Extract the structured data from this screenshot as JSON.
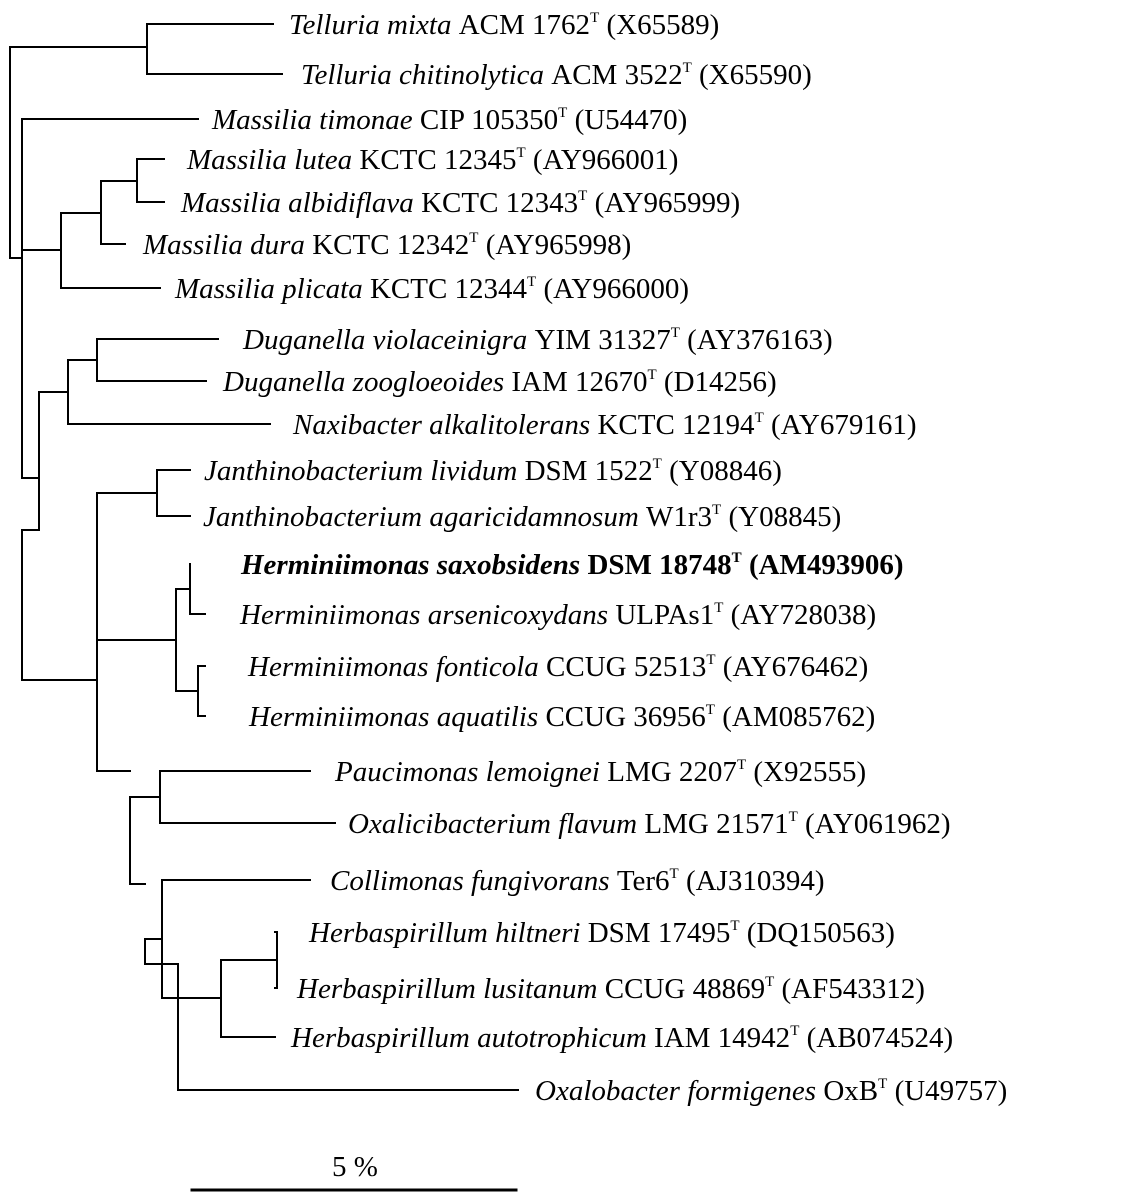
{
  "taxa": [
    {
      "genus_species": "Telluria mixta",
      "strain": "ACM 1762",
      "type_mark": "T",
      "accession": "(X65589)",
      "bold": false
    },
    {
      "genus_species": "Telluria chitinolytica",
      "strain": "ACM 3522",
      "type_mark": "T",
      "accession": "(X65590)",
      "bold": false
    },
    {
      "genus_species": "Massilia timonae",
      "strain": "CIP 105350",
      "type_mark": "T",
      "accession": "(U54470)",
      "bold": false
    },
    {
      "genus_species": "Massilia lutea",
      "strain": "KCTC 12345",
      "type_mark": "T",
      "accession": "(AY966001)",
      "bold": false
    },
    {
      "genus_species": "Massilia albidiflava",
      "strain": "KCTC 12343",
      "type_mark": "T",
      "accession": "(AY965999)",
      "bold": false
    },
    {
      "genus_species": "Massilia dura",
      "strain": "KCTC 12342",
      "type_mark": "T",
      "accession": "(AY965998)",
      "bold": false
    },
    {
      "genus_species": "Massilia plicata",
      "strain": "KCTC 12344",
      "type_mark": "T",
      "accession": "(AY966000)",
      "bold": false
    },
    {
      "genus_species": "Duganella violaceinigra",
      "strain": "YIM 31327",
      "type_mark": "T",
      "accession": "(AY376163)",
      "bold": false
    },
    {
      "genus_species": "Duganella zoogloeoides",
      "strain": "IAM 12670",
      "type_mark": "T",
      "accession": "(D14256)",
      "bold": false
    },
    {
      "genus_species": "Naxibacter alkalitolerans",
      "strain": "KCTC 12194",
      "type_mark": "T",
      "accession": "(AY679161)",
      "bold": false
    },
    {
      "genus_species": "Janthinobacterium lividum",
      "strain": "DSM 1522",
      "type_mark": "T",
      "accession": "(Y08846)",
      "bold": false
    },
    {
      "genus_species": "Janthinobacterium agaricidamnosum",
      "strain": "W1r3",
      "type_mark": "T",
      "accession": "(Y08845)",
      "bold": false
    },
    {
      "genus_species": "Herminiimonas saxobsidens",
      "strain": "DSM 18748",
      "type_mark": "T",
      "accession": "(AM493906)",
      "bold": true
    },
    {
      "genus_species": "Herminiimonas arsenicoxydans",
      "strain": "ULPAs1",
      "type_mark": "T",
      "accession": "(AY728038)",
      "bold": false
    },
    {
      "genus_species": "Herminiimonas fonticola",
      "strain": "CCUG 52513",
      "type_mark": "T",
      "accession": "(AY676462)",
      "bold": false
    },
    {
      "genus_species": "Herminiimonas aquatilis",
      "strain": "CCUG 36956",
      "type_mark": "T",
      "accession": "(AM085762)",
      "bold": false
    },
    {
      "genus_species": "Paucimonas lemoignei",
      "strain": "LMG 2207",
      "type_mark": "T",
      "accession": "(X92555)",
      "bold": false
    },
    {
      "genus_species": "Oxalicibacterium flavum",
      "strain": "LMG 21571",
      "type_mark": "T",
      "accession": "(AY061962)",
      "bold": false
    },
    {
      "genus_species": "Collimonas fungivorans",
      "strain": "Ter6",
      "type_mark": "T",
      "accession": "(AJ310394)",
      "bold": false
    },
    {
      "genus_species": "Herbaspirillum hiltneri",
      "strain": "DSM 17495",
      "type_mark": "T",
      "accession": "(DQ150563)",
      "bold": false
    },
    {
      "genus_species": "Herbaspirillum lusitanum",
      "strain": "CCUG 48869",
      "type_mark": "T",
      "accession": "(AF543312)",
      "bold": false
    },
    {
      "genus_species": "Herbaspirillum autotrophicum",
      "strain": "IAM 14942",
      "type_mark": "T",
      "accession": "(AB074524)",
      "bold": false
    },
    {
      "genus_species": "Oxalobacter formigenes",
      "strain": "OxB",
      "type_mark": "T",
      "accession": "(U49757)",
      "bold": false
    }
  ],
  "scale_bar": {
    "label": "5 %"
  }
}
